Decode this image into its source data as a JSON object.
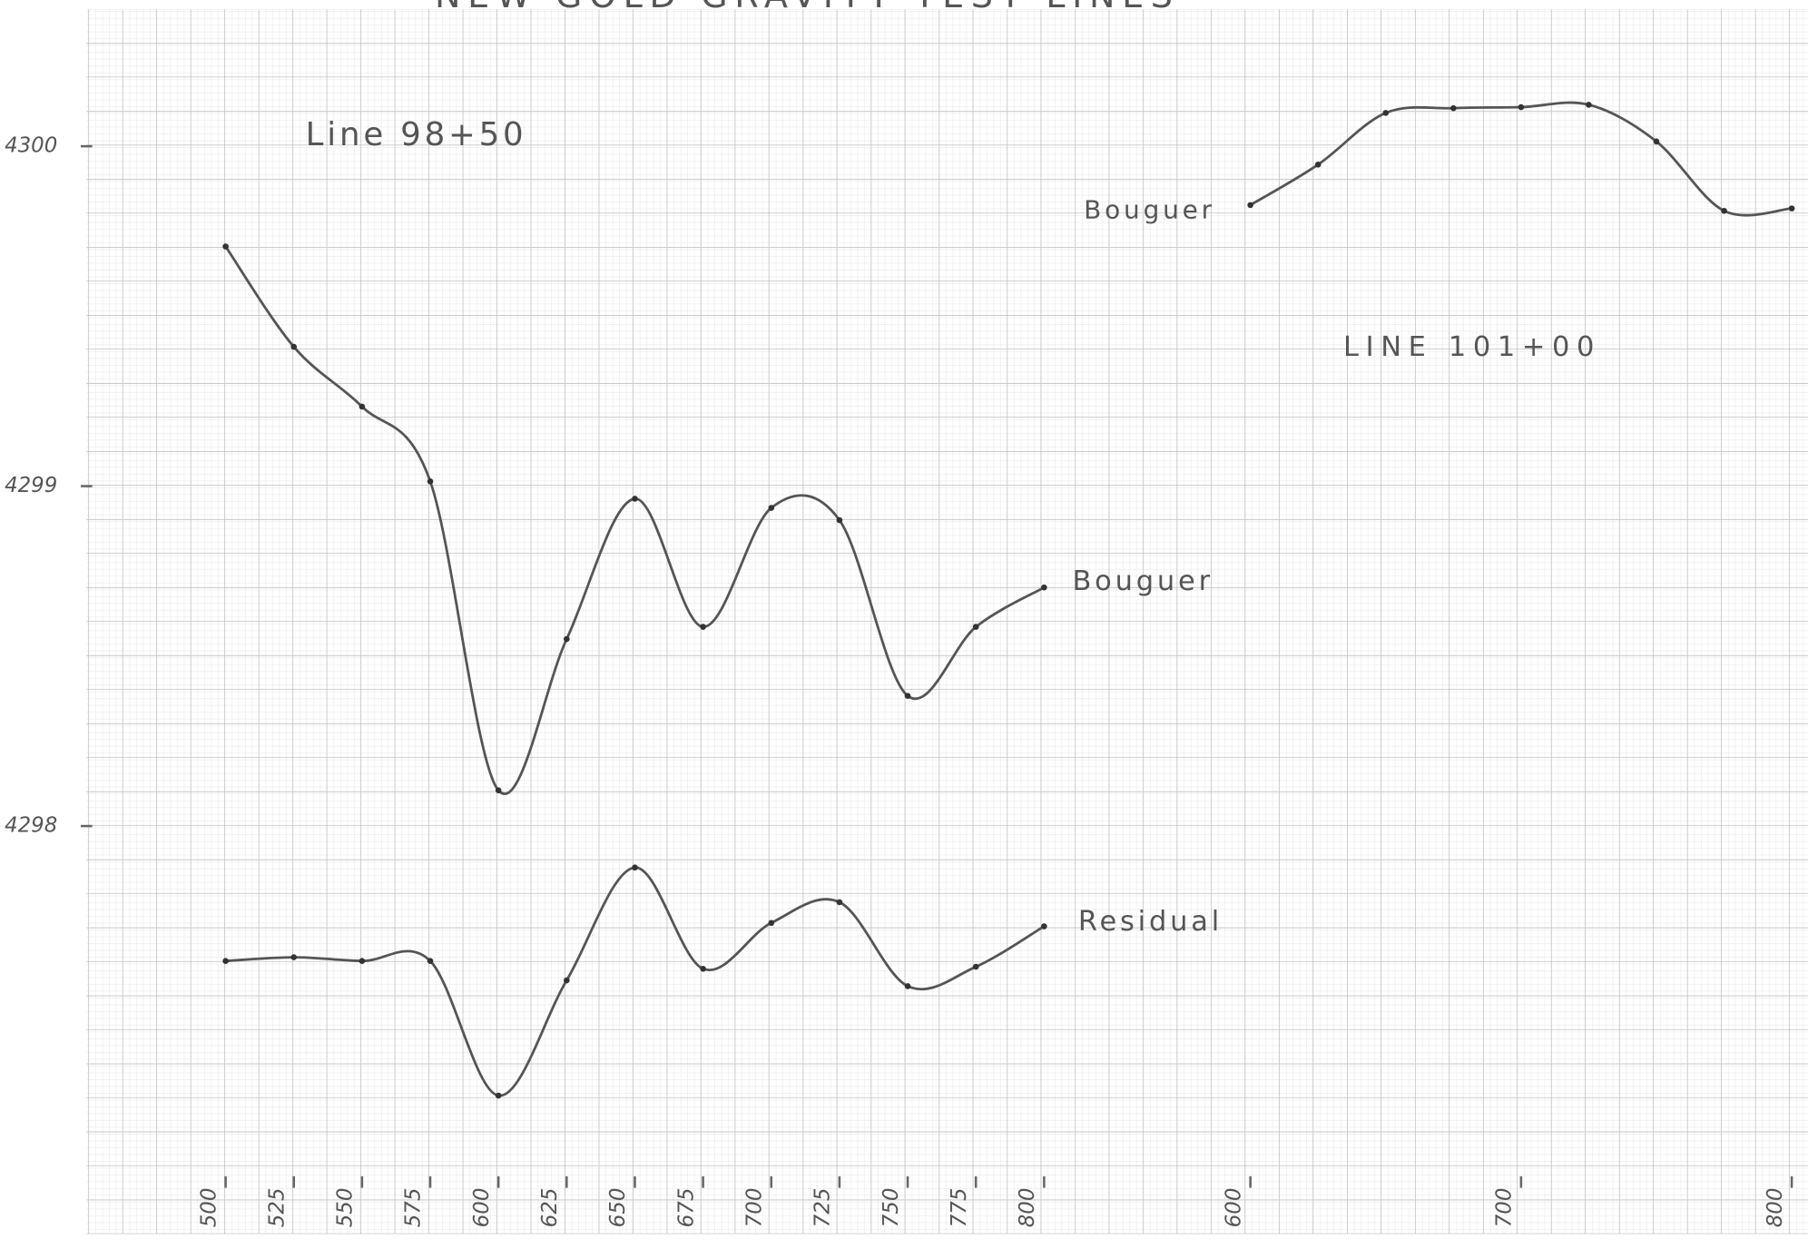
{
  "chart_data": [
    {
      "type": "line",
      "title": "NEW GOLD GRAVITY TEST LINES",
      "subtitle": "Line 98+50",
      "x": [
        500,
        525,
        550,
        575,
        600,
        625,
        650,
        675,
        700,
        725,
        750,
        775,
        800
      ],
      "series": [
        {
          "name": "Bouguer",
          "color": "#555555",
          "values": [
            4299.705,
            4299.41,
            4299.234,
            4299.014,
            4298.105,
            4298.55,
            4298.963,
            4298.586,
            4298.936,
            4298.9,
            4298.383,
            4298.586,
            4298.702
          ]
        },
        {
          "name": "Residual",
          "color": "#555555",
          "values": [
            4297.603,
            4297.614,
            4297.603,
            4297.603,
            4297.207,
            4297.546,
            4297.878,
            4297.58,
            4297.715,
            4297.776,
            4297.529,
            4297.586,
            4297.705
          ]
        }
      ],
      "xlim": [
        449,
        1080
      ],
      "xticks": [
        500,
        525,
        550,
        575,
        600,
        625,
        650,
        675,
        700,
        725,
        750,
        775,
        800
      ],
      "ylim": [
        4296.8,
        4300.43
      ],
      "yticks": [
        4300,
        4299,
        4298
      ],
      "grid": true
    },
    {
      "type": "line",
      "subtitle": "LINE 101+00",
      "x": [
        600,
        625,
        650,
        675,
        700,
        725,
        750,
        775,
        800
      ],
      "series": [
        {
          "name": "Bouguer",
          "color": "#555555",
          "values": [
            4299.827,
            4299.946,
            4300.098,
            4300.112,
            4300.115,
            4300.122,
            4300.014,
            4299.81,
            4299.817
          ]
        }
      ],
      "xlim": [
        170,
        806
      ],
      "xticks": [
        600,
        700,
        800
      ],
      "ylim": [
        4296.8,
        4300.43
      ]
    }
  ]
}
